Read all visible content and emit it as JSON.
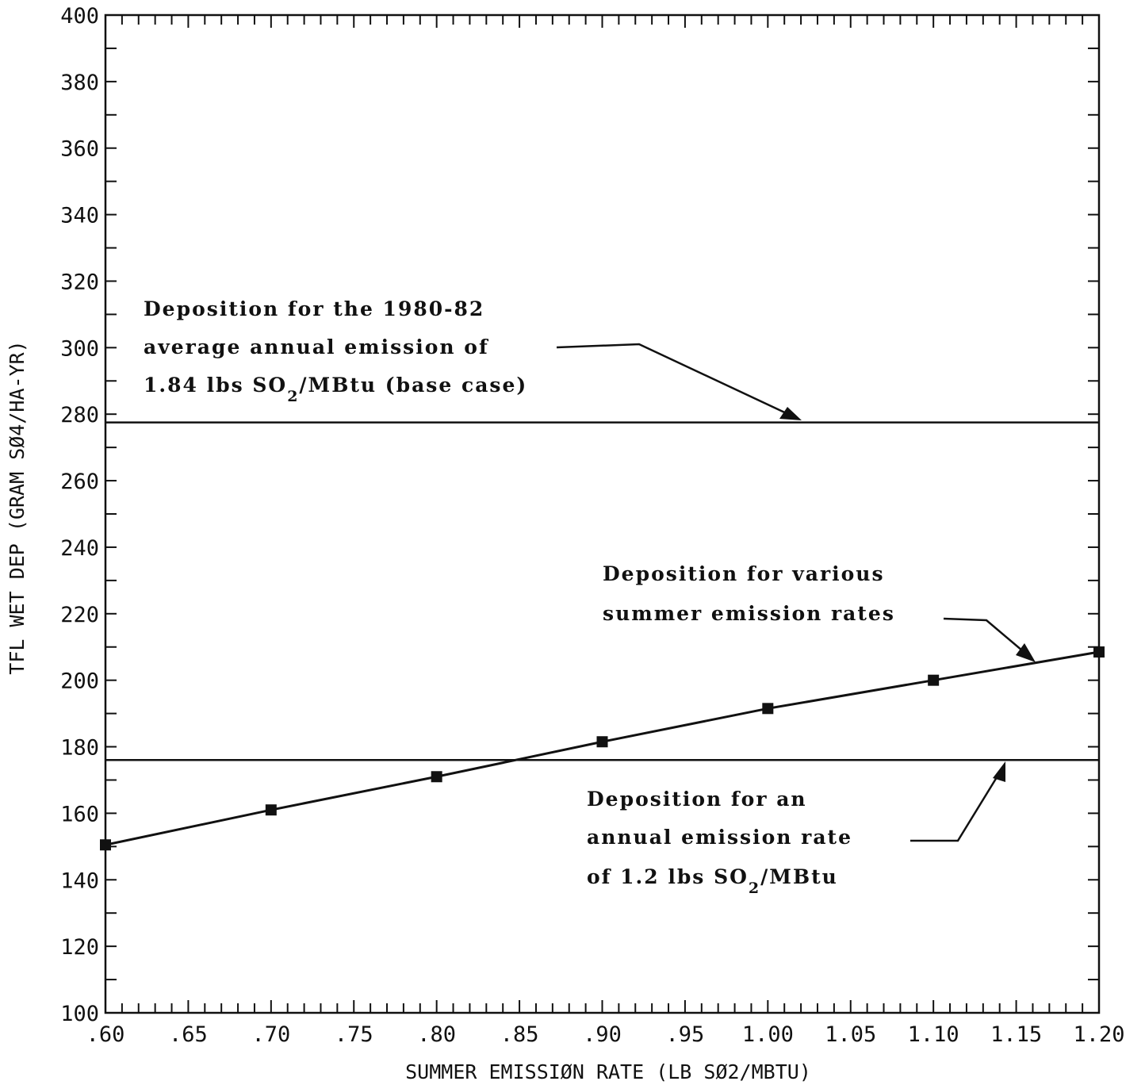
{
  "chart_data": {
    "type": "line",
    "xlabel": "SUMMER EMISSIØN RATE (LB SØ2/MBTU)",
    "ylabel": "TFL WET DEP (GRAM SØ4/HA-YR)",
    "xlim": [
      0.6,
      1.2
    ],
    "ylim": [
      100,
      400
    ],
    "x_ticks": [
      ".60",
      ".65",
      ".70",
      ".75",
      ".80",
      ".85",
      ".90",
      ".95",
      "1.00",
      "1.05",
      "1.10",
      "1.15",
      "1.20"
    ],
    "y_ticks": [
      "100",
      "120",
      "140",
      "160",
      "180",
      "200",
      "220",
      "240",
      "260",
      "280",
      "300",
      "320",
      "340",
      "360",
      "380",
      "400"
    ],
    "grid": false,
    "legend": "none",
    "series": [
      {
        "x": [
          0.6,
          0.7,
          0.8,
          0.9,
          1.0,
          1.1,
          1.2
        ],
        "y": [
          150.5,
          161,
          171,
          181.5,
          191.5,
          200,
          208.5
        ]
      }
    ],
    "reference_lines": [
      {
        "y": 277.5
      },
      {
        "y": 176
      }
    ],
    "annotations": {
      "base_case": {
        "line1": "Deposition for the 1980-82",
        "line2": "average annual emission of",
        "line3_pre": "1.84 lbs SO",
        "line3_sub": "2",
        "line3_post": "/MBtu (base case)"
      },
      "various": {
        "line1": "Deposition for various",
        "line2": "summer emission rates"
      },
      "annual": {
        "line1": "Deposition for an",
        "line2": "annual emission rate",
        "line3_pre": "of 1.2 lbs SO",
        "line3_sub": "2",
        "line3_post": "/MBtu"
      }
    }
  }
}
